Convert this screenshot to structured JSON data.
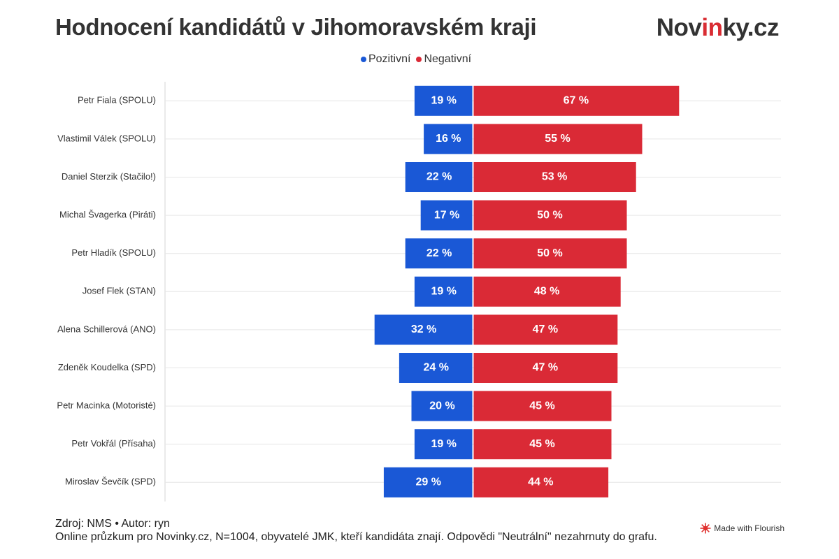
{
  "header": {
    "title": "Hodnocení kandidátů v Jihomoravském kraji",
    "logo_pre": "Nov",
    "logo_accent": "in",
    "logo_post": "ky.cz"
  },
  "colors": {
    "positive": "#1a58d6",
    "negative": "#da2a36",
    "grid": "#e6e6e6"
  },
  "chart_data": {
    "type": "bar",
    "orientation": "horizontal-diverging",
    "title": "Hodnocení kandidátů v Jihomoravském kraji",
    "xlabel": "",
    "ylabel": "",
    "legend_position": "top-center",
    "grid": true,
    "value_suffix": " %",
    "categories": [
      "Petr Fiala (SPOLU)",
      "Vlastimil Válek (SPOLU)",
      "Daniel Sterzik (Stačilo!)",
      "Michal Švagerka (Piráti)",
      "Petr Hladík (SPOLU)",
      "Josef Flek (STAN)",
      "Alena Schillerová (ANO)",
      "Zdeněk Koudelka (SPD)",
      "Petr Macinka (Motoristé)",
      "Petr Vokřál (Přísaha)",
      "Miroslav Ševčík (SPD)"
    ],
    "series": [
      {
        "name": "Pozitivní",
        "values": [
          19,
          16,
          22,
          17,
          22,
          19,
          32,
          24,
          20,
          19,
          29
        ]
      },
      {
        "name": "Negativní",
        "values": [
          67,
          55,
          53,
          50,
          50,
          48,
          47,
          47,
          45,
          45,
          44
        ]
      }
    ]
  },
  "footer": {
    "line1": "Zdroj: NMS • Autor: ryn",
    "line2": "Online průzkum pro Novinky.cz, N=1004, obyvatelé JMK, kteří kandidáta znají. Odpovědi \"Neutrální\" nezahrnuty do grafu."
  },
  "flourish": {
    "label": "Made with Flourish",
    "icon": "flourish-logo-icon"
  }
}
